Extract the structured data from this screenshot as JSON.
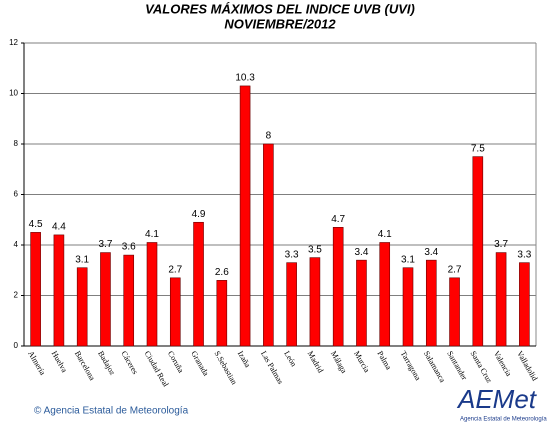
{
  "chart_data": {
    "type": "bar",
    "title": "VALORES MÁXIMOS DEL INDICE UVB (UVI)",
    "subtitle": "NOVIEMBRE/2012",
    "categories": [
      "Almería",
      "Huelva",
      "Barcelona",
      "Badajoz",
      "Cáceres",
      "Ciudad Real",
      "Coruña",
      "Granada",
      "S.Sebastian",
      "Izaña",
      "Las Palmas",
      "León",
      "Madrid",
      "Málaga",
      "Murcia",
      "Palma",
      "Tarragona",
      "Salamanca",
      "Santander",
      "Santa Cruz",
      "Valencia",
      "Valladolid"
    ],
    "values": [
      4.5,
      4.4,
      3.1,
      3.7,
      3.6,
      4.1,
      2.7,
      4.9,
      2.6,
      10.3,
      8,
      3.3,
      3.5,
      4.7,
      3.4,
      4.1,
      3.1,
      3.4,
      2.7,
      7.5,
      3.7,
      3.3
    ],
    "color": "#ff0000",
    "ylim": [
      0,
      12
    ],
    "yticks": [
      0,
      2,
      4,
      6,
      8,
      10,
      12
    ],
    "grid": true
  },
  "footer": {
    "copyright": "© Agencia Estatal de Meteorología",
    "logo": "AEMet",
    "logo_subtitle": "Agencia Estatal de Meteorología"
  }
}
